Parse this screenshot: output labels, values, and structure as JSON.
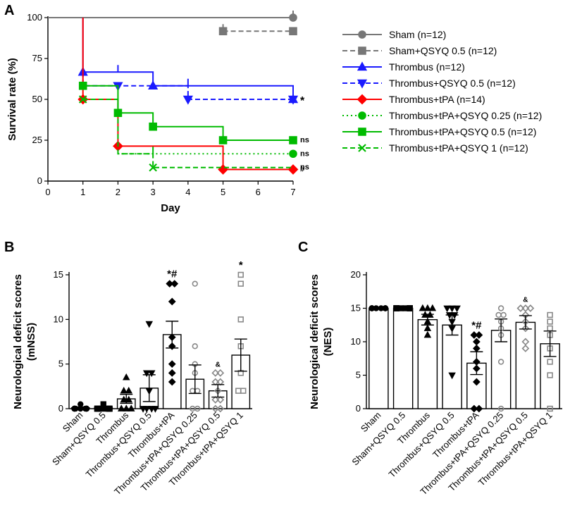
{
  "colors": {
    "sham": "#777777",
    "sham_qsyq": "#777777",
    "thrombus": "#1a1aff",
    "thrombus_qsyq": "#1a1aff",
    "tpa": "#ff0000",
    "tpa_qsyq": "#00bb00",
    "bar_edge": "#000000",
    "filled_points": "#000000",
    "open_points": "#888888"
  },
  "chart_data": [
    {
      "panel": "A",
      "type": "line",
      "subtype": "kaplan-meier",
      "xlabel": "Day",
      "ylabel": "Survival rate (%)",
      "xlim": [
        0,
        7
      ],
      "ylim": [
        0,
        100
      ],
      "xticks": [
        "0",
        "1",
        "2",
        "3",
        "4",
        "5",
        "6",
        "7"
      ],
      "yticks": [
        "0",
        "25",
        "50",
        "75",
        "100"
      ],
      "legend_position": "right",
      "series": [
        {
          "name": "Sham (n=12)",
          "color": "#777777",
          "dash": "solid",
          "marker": "circle",
          "filled": true,
          "steps": [
            [
              0,
              100
            ],
            [
              7,
              100
            ]
          ],
          "censors": [
            [
              7,
              100
            ]
          ],
          "markers": [
            [
              7,
              100
            ]
          ],
          "label": ""
        },
        {
          "name": "Sham+QSYQ 0.5 (n=12)",
          "color": "#777777",
          "dash": "dash",
          "marker": "square",
          "filled": true,
          "steps": [
            [
              5,
              91.7
            ],
            [
              7,
              91.7
            ]
          ],
          "censors": [
            [
              5,
              91.7
            ]
          ],
          "markers": [
            [
              5,
              91.7
            ],
            [
              7,
              91.7
            ]
          ],
          "label": ""
        },
        {
          "name": "Thrombus (n=12)",
          "color": "#1a1aff",
          "dash": "solid",
          "marker": "triangle-up",
          "filled": true,
          "steps": [
            [
              1,
              100
            ],
            [
              1,
              66.7
            ],
            [
              3,
              66.7
            ],
            [
              3,
              58.3
            ],
            [
              7,
              58.3
            ],
            [
              7,
              50
            ]
          ],
          "censors": [
            [
              2,
              66.7
            ]
          ],
          "markers": [
            [
              1,
              66.7
            ],
            [
              3,
              58.3
            ],
            [
              7,
              50
            ]
          ],
          "label": ""
        },
        {
          "name": "Thrombus+QSYQ 0.5 (n=12)",
          "color": "#1a1aff",
          "dash": "dash",
          "marker": "triangle-down",
          "filled": true,
          "steps": [
            [
              1,
              66.7
            ],
            [
              1,
              58.3
            ],
            [
              4,
              58.3
            ],
            [
              4,
              50
            ],
            [
              7,
              50
            ]
          ],
          "censors": [
            [
              4,
              58.3
            ]
          ],
          "markers": [
            [
              2,
              58.3
            ],
            [
              4,
              50
            ],
            [
              7,
              50
            ]
          ],
          "label": "*"
        },
        {
          "name": "Thrombus+tPA (n=14)",
          "color": "#ff0000",
          "dash": "solid",
          "marker": "diamond",
          "filled": true,
          "steps": [
            [
              1,
              100
            ],
            [
              1,
              50
            ],
            [
              2,
              50
            ],
            [
              2,
              21.4
            ],
            [
              5,
              21.4
            ],
            [
              5,
              7.1
            ],
            [
              7,
              7.1
            ]
          ],
          "censors": [],
          "markers": [
            [
              1,
              50
            ],
            [
              2,
              21.4
            ],
            [
              5,
              7.1
            ],
            [
              7,
              7.1
            ]
          ],
          "label": "#"
        },
        {
          "name": "Thrombus+tPA+QSYQ 0.25 (n=12)",
          "color": "#00bb00",
          "dash": "dot",
          "marker": "circle",
          "filled": true,
          "steps": [
            [
              2,
              16.7
            ],
            [
              7,
              16.7
            ]
          ],
          "censors": [],
          "markers": [
            [
              7,
              16.7
            ]
          ],
          "label": "ns"
        },
        {
          "name": "Thrombus+tPA+QSYQ 0.5 (n=12)",
          "color": "#00bb00",
          "dash": "solid",
          "marker": "square",
          "filled": true,
          "steps": [
            [
              1,
              58.3
            ],
            [
              2,
              58.3
            ],
            [
              2,
              41.7
            ],
            [
              3,
              41.7
            ],
            [
              3,
              33.3
            ],
            [
              5,
              33.3
            ],
            [
              5,
              25
            ],
            [
              7,
              25
            ]
          ],
          "censors": [],
          "markers": [
            [
              1,
              58.3
            ],
            [
              2,
              41.7
            ],
            [
              3,
              33.3
            ],
            [
              5,
              25
            ],
            [
              7,
              25
            ]
          ],
          "label": "ns"
        },
        {
          "name": "Thrombus+tPA+QSYQ 1 (n=12)",
          "color": "#00bb00",
          "dash": "dash",
          "marker": "x",
          "filled": false,
          "steps": [
            [
              1,
              50
            ],
            [
              2,
              50
            ],
            [
              2,
              16.7
            ],
            [
              3,
              16.7
            ],
            [
              3,
              8.3
            ],
            [
              7,
              8.3
            ]
          ],
          "censors": [
            [
              3,
              16.7
            ]
          ],
          "markers": [
            [
              1,
              50
            ],
            [
              3,
              8.3
            ]
          ],
          "label": "ns"
        }
      ]
    },
    {
      "panel": "B",
      "type": "bar",
      "ylabel": "Neurological deficit scores\n(mNSS)",
      "ylim": [
        0,
        15
      ],
      "yticks": [
        "0",
        "5",
        "10",
        "15"
      ],
      "categories": [
        "Sham",
        "Sham+QSYQ 0.5",
        "Thrombus",
        "Thrombus+QSYQ 0.5",
        "Thrombus+tPA",
        "Thrombus+tPA+QSYQ 0.25",
        "Thrombus+tPA+QSYQ 0.5",
        "Thrombus+tPA+QSYQ 1"
      ],
      "means": [
        0.1,
        0.1,
        1.1,
        2.3,
        8.3,
        3.3,
        2.0,
        6.0
      ],
      "sem": [
        0.1,
        0.1,
        0.5,
        1.5,
        1.5,
        1.6,
        0.7,
        1.8
      ],
      "markers": [
        "circle",
        "square",
        "triangle-up",
        "triangle-down",
        "diamond",
        "circle-open",
        "diamond-open",
        "square-open"
      ],
      "points": [
        [
          0,
          0,
          0,
          0,
          0,
          0,
          0,
          0,
          0,
          0,
          0,
          0.5
        ],
        [
          0,
          0,
          0,
          0,
          0,
          0,
          0,
          0,
          0,
          0,
          0,
          0.5
        ],
        [
          0,
          0,
          0,
          1,
          1,
          2,
          2,
          3.5
        ],
        [
          0,
          0,
          0,
          0,
          2,
          4,
          4,
          9.5
        ],
        [
          3,
          4,
          5,
          7,
          8,
          12,
          14,
          14
        ],
        [
          0,
          0,
          2,
          2,
          4,
          5,
          7,
          14
        ],
        [
          0,
          0,
          1,
          1,
          2,
          3,
          3,
          4,
          4
        ],
        [
          2,
          2,
          4,
          7,
          10,
          14,
          15
        ]
      ],
      "annotations": [
        "",
        "",
        "",
        "",
        "*#",
        "",
        "&",
        "*"
      ]
    },
    {
      "panel": "C",
      "type": "bar",
      "ylabel": "Neurological deficit scores\n(NES)",
      "ylim": [
        0,
        20
      ],
      "yticks": [
        "0",
        "5",
        "10",
        "15",
        "20"
      ],
      "categories": [
        "Sham",
        "Sham+QSYQ 0.5",
        "Thrombus",
        "Thrombus+QSYQ 0.5",
        "Thrombus+tPA",
        "Thrombus+tPA+QSYQ 0.25",
        "Thrombus+tPA+QSYQ 0.5",
        "Thrombus+tPA+QSYQ 1"
      ],
      "means": [
        15,
        15,
        13.3,
        12.5,
        6.8,
        11.7,
        12.9,
        9.7
      ],
      "sem": [
        0,
        0,
        0.8,
        1.5,
        1.7,
        1.7,
        1.0,
        1.9
      ],
      "markers": [
        "circle",
        "square",
        "triangle-up",
        "triangle-down",
        "diamond",
        "circle-open",
        "diamond-open",
        "square-open"
      ],
      "points": [
        [
          15,
          15,
          15,
          15,
          15,
          15,
          15,
          15,
          15,
          15,
          15,
          15
        ],
        [
          15,
          15,
          15,
          15,
          15,
          15,
          15,
          15,
          15,
          15,
          15,
          15
        ],
        [
          11,
          12,
          13,
          14,
          14,
          15,
          15,
          15
        ],
        [
          5,
          12,
          13,
          14,
          14,
          15,
          15,
          15
        ],
        [
          0,
          0,
          4,
          6,
          7,
          9,
          10,
          11,
          11
        ],
        [
          0,
          7,
          11,
          12,
          13,
          14,
          14,
          15
        ],
        [
          9,
          10,
          12,
          13,
          14,
          15,
          15,
          15
        ],
        [
          0,
          5,
          7,
          9,
          11,
          12,
          13,
          14
        ]
      ],
      "annotations": [
        "",
        "",
        "",
        "",
        "*#",
        "",
        "&",
        ""
      ]
    }
  ]
}
